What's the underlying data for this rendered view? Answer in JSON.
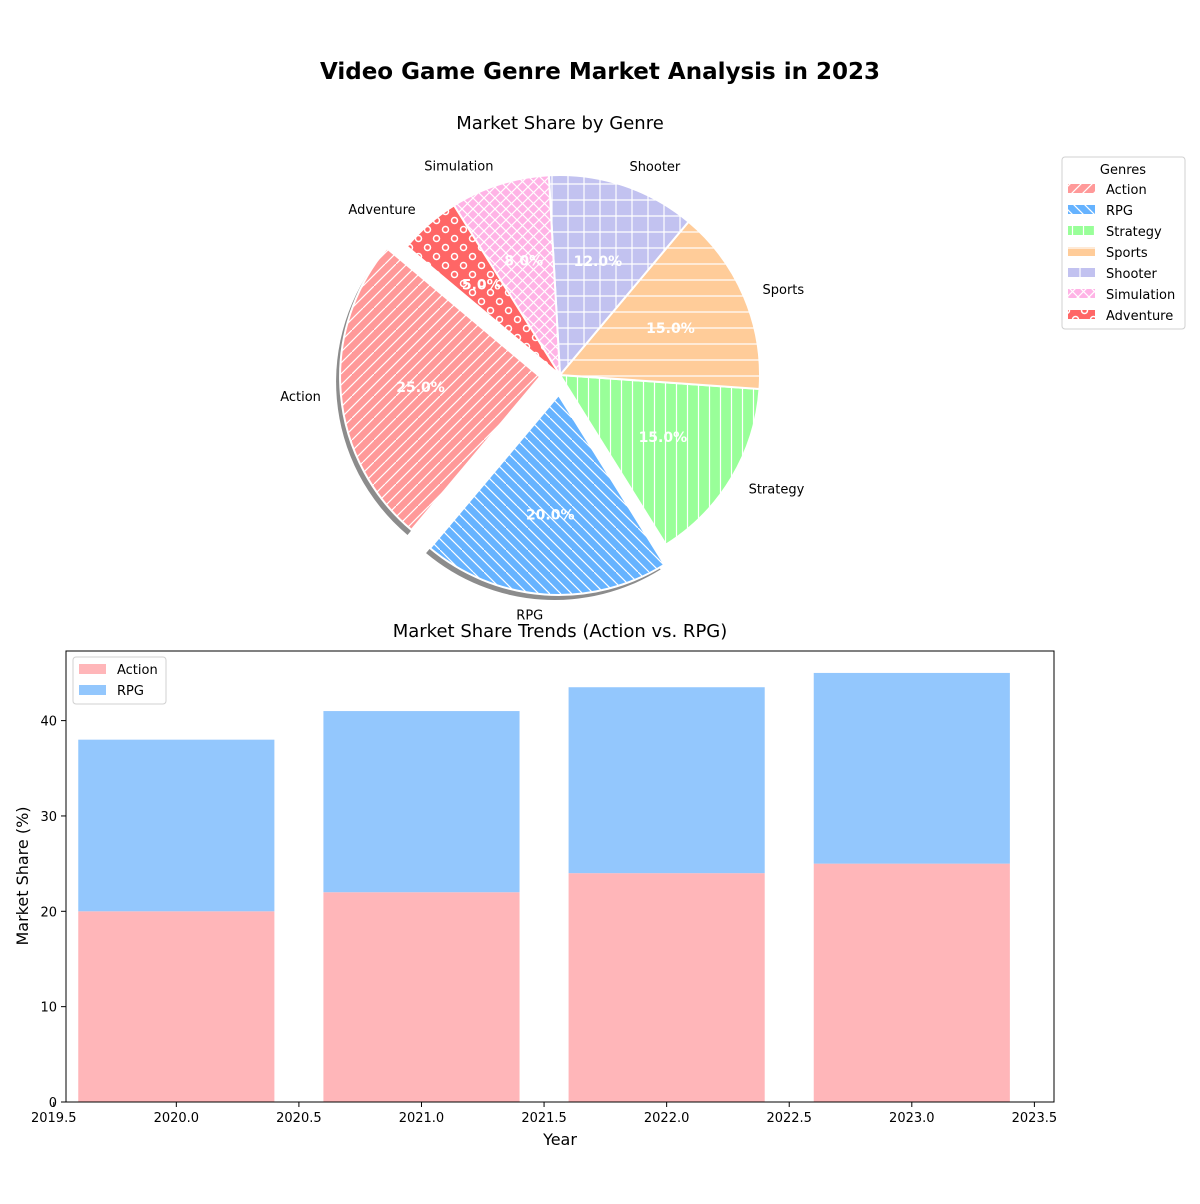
{
  "figure": {
    "title": "Video Game Genre Market Analysis in 2023"
  },
  "chart_data": [
    {
      "type": "pie",
      "title": "Market Share by Genre",
      "categories": [
        "Action",
        "RPG",
        "Strategy",
        "Sports",
        "Shooter",
        "Simulation",
        "Adventure"
      ],
      "values": [
        25,
        20,
        15,
        15,
        12,
        8,
        5
      ],
      "autopct": [
        "25.0%",
        "20.0%",
        "15.0%",
        "15.0%",
        "12.0%",
        "8.0%",
        "5.0%"
      ],
      "colors": [
        "#ff9999",
        "#66b3ff",
        "#99ff99",
        "#ffcc99",
        "#c2c2f0",
        "#ffb3e6",
        "#ff6666"
      ],
      "hatches": [
        "diagonal",
        "back-diagonal",
        "vertical",
        "horizontal",
        "grid",
        "crosshatch",
        "circles"
      ],
      "exploded": [
        true,
        true,
        false,
        false,
        false,
        false,
        false
      ],
      "shadow": true,
      "legend_title": "Genres",
      "legend_placement": "right"
    },
    {
      "type": "bar",
      "stacked": true,
      "title": "Market Share Trends (Action vs. RPG)",
      "xlabel": "Year",
      "ylabel": "Market Share (%)",
      "x": [
        2020,
        2021,
        2022,
        2023
      ],
      "series": [
        {
          "name": "Action",
          "values": [
            20,
            22,
            24,
            25
          ],
          "color": "#ffb6b9"
        },
        {
          "name": "RPG",
          "values": [
            18,
            19,
            19.5,
            20
          ],
          "color": "#93c7fd"
        }
      ],
      "xlim": [
        2019.55,
        2023.58
      ],
      "ylim": [
        0,
        47.3
      ],
      "xticks": [
        "2019.5",
        "2020.0",
        "2020.5",
        "2021.0",
        "2021.5",
        "2022.0",
        "2022.5",
        "2023.0",
        "2023.5"
      ],
      "yticks": [
        "0",
        "10",
        "20",
        "30",
        "40"
      ],
      "grid": false,
      "legend_placement": "top-left"
    }
  ]
}
